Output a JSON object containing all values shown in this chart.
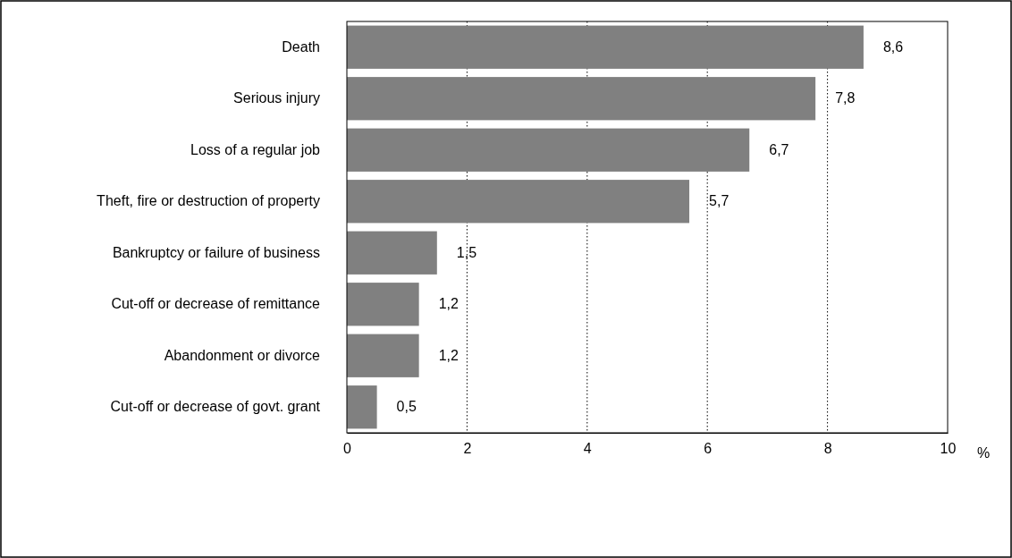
{
  "chart_data": {
    "type": "bar",
    "orientation": "horizontal",
    "categories": [
      "Death",
      "Serious injury",
      "Loss of a regular job",
      "Theft, fire or destruction of property",
      "Bankruptcy or failure of business",
      "Cut-off or decrease of remittance",
      "Abandonment or divorce",
      "Cut-off or decrease of govt. grant"
    ],
    "values": [
      8.6,
      7.8,
      6.7,
      5.7,
      1.5,
      1.2,
      1.2,
      0.5
    ],
    "value_labels": [
      "8,6",
      "7,8",
      "6,7",
      "5,7",
      "1,5",
      "1,2",
      "1,2",
      "0,5"
    ],
    "color": "#808080",
    "xlim": [
      0,
      10
    ],
    "xticks": [
      0,
      2,
      4,
      6,
      8,
      10
    ],
    "xlabel": "%",
    "grid": "x"
  }
}
